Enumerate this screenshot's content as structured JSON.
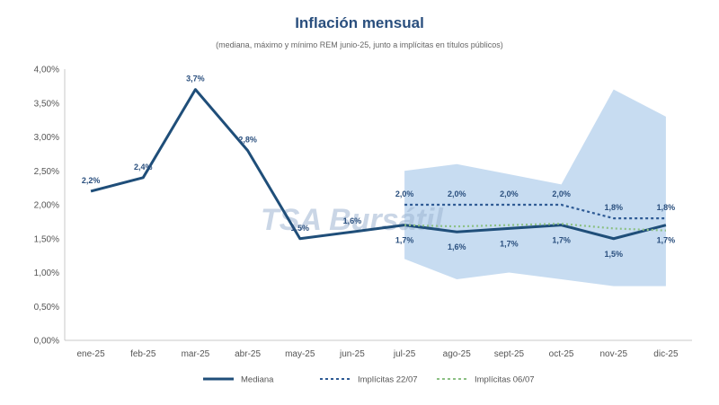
{
  "chart_data": {
    "type": "line",
    "title": "Inflación mensual",
    "subtitle": "(mediana, máximo y mínimo REM junio-25, junto a implícitas en títulos públicos)",
    "categories": [
      "ene-25",
      "feb-25",
      "mar-25",
      "abr-25",
      "may-25",
      "jun-25",
      "jul-25",
      "ago-25",
      "sept-25",
      "oct-25",
      "nov-25",
      "dic-25"
    ],
    "y_ticks": [
      "0,00%",
      "0,50%",
      "1,00%",
      "1,50%",
      "2,00%",
      "2,50%",
      "3,00%",
      "3,50%",
      "4,00%"
    ],
    "ylim": [
      0,
      4
    ],
    "series": [
      {
        "name": "Mediana",
        "style": "solid",
        "color": "#1f4e79",
        "values": [
          2.2,
          2.4,
          3.7,
          2.8,
          1.5,
          1.6,
          1.7,
          1.6,
          1.65,
          1.7,
          1.5,
          1.7
        ]
      },
      {
        "name": "Implícitas 22/07",
        "style": "dotted",
        "color": "#2e5a94",
        "values": [
          null,
          null,
          null,
          null,
          null,
          null,
          2.0,
          2.0,
          2.0,
          2.0,
          1.8,
          1.8
        ]
      },
      {
        "name": "Implícitas 06/07",
        "style": "dotted",
        "color": "#8cc084",
        "values": [
          null,
          null,
          null,
          null,
          null,
          null,
          1.7,
          1.68,
          1.7,
          1.72,
          1.65,
          1.62
        ]
      }
    ],
    "band": {
      "name": "Rango REM (máximo y mínimo)",
      "color": "#b9d3ee",
      "upper": [
        null,
        null,
        null,
        null,
        null,
        null,
        2.5,
        2.6,
        2.45,
        2.3,
        3.7,
        3.3
      ],
      "lower": [
        null,
        null,
        null,
        null,
        null,
        null,
        1.2,
        0.9,
        1.0,
        0.9,
        0.8,
        0.8
      ]
    },
    "labels_upper": [
      "2,2%",
      "2,4%",
      "3,7%",
      "2,8%",
      "1,5%",
      "1,6%",
      "2,0%",
      "2,0%",
      "2,0%",
      "2,0%",
      "1,8%",
      "1,8%"
    ],
    "labels_lower": [
      "",
      "",
      "",
      "",
      "",
      "",
      "1,7%",
      "1,6%",
      "1,7%",
      "1,7%",
      "1,5%",
      "1,7%"
    ],
    "legend": [
      "Mediana",
      "Implícitas 22/07",
      "Implícitas 06/07"
    ],
    "watermark": "TSA Bursátil"
  }
}
